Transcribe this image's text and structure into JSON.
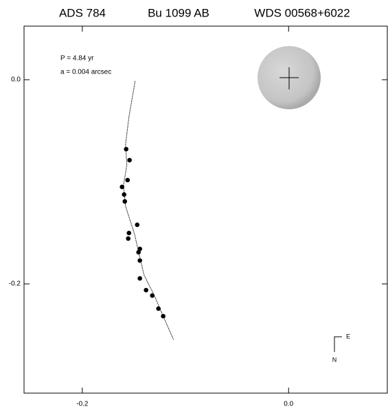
{
  "chart_data": {
    "type": "scatter",
    "titles": [
      "ADS 784",
      "Bu 1099 AB",
      "WDS 00568+6022"
    ],
    "annotations": [
      "P = 4.84 yr",
      "a = 0.004 arcsec"
    ],
    "compass": [
      "E",
      "N"
    ],
    "x": [
      -0.1575,
      -0.1542,
      -0.1561,
      -0.1615,
      -0.1595,
      -0.1588,
      -0.1468,
      -0.1548,
      -0.1555,
      -0.1442,
      -0.1455,
      -0.1442,
      -0.1442,
      -0.1382,
      -0.1322,
      -0.1262,
      -0.1216
    ],
    "y": [
      -0.068,
      -0.0788,
      -0.0983,
      -0.105,
      -0.1125,
      -0.1192,
      -0.1421,
      -0.1502,
      -0.1556,
      -0.1657,
      -0.169,
      -0.1771,
      -0.1946,
      -0.2061,
      -0.2114,
      -0.2242,
      -0.2316
    ],
    "color": "#000000",
    "orbit": {
      "x": [
        -0.1488,
        -0.1548,
        -0.1581,
        -0.1568,
        -0.1601,
        -0.1581,
        -0.1495,
        -0.1449,
        -0.1402,
        -0.1302,
        -0.1216,
        -0.1116
      ],
      "y": [
        -0.0013,
        -0.0364,
        -0.0633,
        -0.0835,
        -0.1037,
        -0.1239,
        -0.1508,
        -0.171,
        -0.1912,
        -0.2114,
        -0.2316,
        -0.2545
      ]
    },
    "xlim": [
      -0.2565,
      0.0957
    ],
    "ylim": [
      -0.307,
      0.0525
    ],
    "xticks": [
      -0.2,
      {
        "value": 0,
        "label": "0.0"
      }
    ],
    "yticks": [
      {
        "value": 0,
        "label": "0.0"
      },
      -0.2
    ]
  }
}
